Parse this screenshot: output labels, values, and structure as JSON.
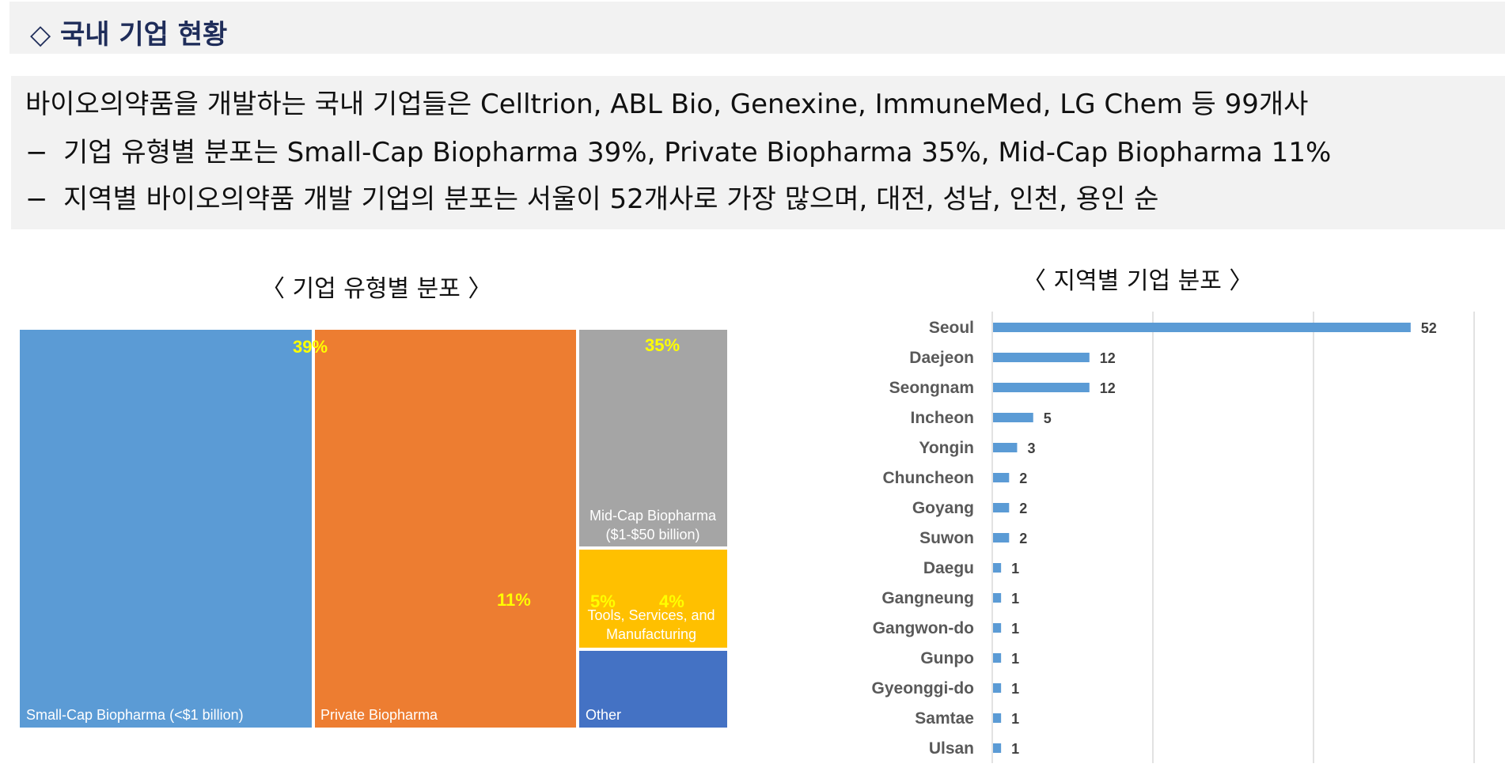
{
  "header": {
    "title": "◇ 국내 기업 현황"
  },
  "summary": {
    "line1": "바이오의약품을 개발하는 국내 기업들은 Celltrion, ABL Bio, Genexine, ImmuneMed, LG Chem 등 99개사",
    "line2_dash": "−",
    "line2": "기업 유형별 분포는 Small-Cap Biopharma 39%, Private Biopharma 35%, Mid-Cap Biopharma 11%",
    "line3_dash": "−",
    "line3": "지역별 바이오의약품 개발 기업의 분포는 서울이 52개사로 가장 많으며, 대전, 성남, 인천, 용인 순"
  },
  "colors": {
    "blue": "#5b9bd5",
    "orange": "#ed7d31",
    "gray": "#a5a5a5",
    "gold": "#ffc000",
    "darkblue": "#4472c4",
    "yellow_label": "#ffff00",
    "bar": "#5b9bd5"
  },
  "chart_data": [
    {
      "type": "treemap",
      "title": "〈 기업 유형별 분포 〉",
      "items": [
        {
          "label": "Small-Cap Biopharma (<$1 billion)",
          "pct_label": "39%",
          "color": "#5b9bd5"
        },
        {
          "label": "Private Biopharma",
          "pct_label": "35%",
          "color": "#ed7d31"
        },
        {
          "label": "Mid-Cap Biopharma ($1-$50 billion)",
          "pct_label": "11%",
          "color": "#a5a5a5"
        },
        {
          "label": "Tools, Services, and Manufacturing",
          "pct_label": "5%",
          "color": "#ffc000"
        },
        {
          "label": "Other",
          "pct_label": "4%",
          "color": "#4472c4"
        }
      ]
    },
    {
      "type": "bar",
      "orientation": "horizontal",
      "title": "〈 지역별 기업 분포 〉",
      "categories": [
        "Seoul",
        "Daejeon",
        "Seongnam",
        "Incheon",
        "Yongin",
        "Chuncheon",
        "Goyang",
        "Suwon",
        "Daegu",
        "Gangneung",
        "Gangwon-do",
        "Gunpo",
        "Gyeonggi-do",
        "Samtae",
        "Ulsan"
      ],
      "values": [
        52,
        12,
        12,
        5,
        3,
        2,
        2,
        2,
        1,
        1,
        1,
        1,
        1,
        1,
        1
      ],
      "xlim": [
        0,
        60
      ],
      "grid": true
    }
  ]
}
